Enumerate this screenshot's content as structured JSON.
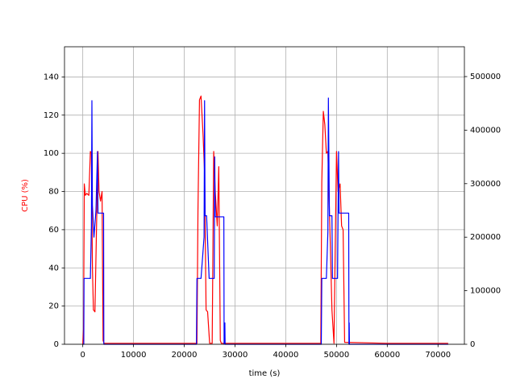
{
  "chart_data": {
    "type": "line",
    "x_label": "time (s)",
    "y_label": "CPU (%)",
    "y_label_color": "#ff0000",
    "xlim": [
      -3600,
      75200
    ],
    "xticks": [
      0,
      10000,
      20000,
      30000,
      40000,
      50000,
      60000,
      70000
    ],
    "ylim": [
      0,
      155.8
    ],
    "yticks": [
      0,
      20,
      40,
      60,
      80,
      100,
      120,
      140
    ],
    "y2lim": [
      0,
      555700
    ],
    "y2ticks": [
      0,
      100000,
      200000,
      300000,
      400000,
      500000
    ],
    "grid": true,
    "series": [
      {
        "color": "#ff0000",
        "x": [
          0,
          150,
          300,
          500,
          800,
          1200,
          1500,
          1700,
          1900,
          2100,
          2400,
          2700,
          3000,
          3200,
          3500,
          3800,
          4000,
          4200,
          10000,
          22500,
          22700,
          23000,
          23300,
          23700,
          24000,
          24300,
          24600,
          25000,
          25500,
          25800,
          26100,
          26500,
          26800,
          27100,
          27300,
          30000,
          46900,
          47100,
          47400,
          47700,
          48000,
          48300,
          48700,
          49100,
          49500,
          50000,
          50300,
          50700,
          51000,
          51300,
          51600,
          60000,
          72000
        ],
        "values": [
          0,
          8,
          84,
          78,
          79,
          78,
          101,
          100,
          40,
          18,
          17,
          60,
          101,
          80,
          75,
          80,
          2,
          0.5,
          0.5,
          0.5,
          70,
          128,
          130,
          110,
          90,
          18,
          17,
          0.5,
          0.5,
          101,
          80,
          62,
          93,
          2,
          0.5,
          0.5,
          0.5,
          85,
          122,
          115,
          100,
          101,
          60,
          18,
          0.5,
          101,
          80,
          84,
          62,
          60,
          1,
          0.5,
          0.5
        ]
      },
      {
        "color": "#0000ff",
        "axis": "y2",
        "x": [
          0,
          200,
          250,
          1500,
          1700,
          1800,
          1900,
          2200,
          2600,
          2900,
          3000,
          3100,
          4100,
          4150,
          22400,
          22500,
          23300,
          23900,
          24000,
          24100,
          24400,
          24900,
          25000,
          25900,
          26000,
          26100,
          27800,
          27850,
          28000,
          28050,
          47000,
          47100,
          48000,
          48300,
          48400,
          48600,
          49100,
          49200,
          50200,
          50400,
          50500,
          52400,
          52450,
          52500,
          52550,
          72000
        ],
        "values": [
          0,
          0,
          123000,
          123000,
          220000,
          455000,
          260000,
          200000,
          250000,
          360000,
          245000,
          245000,
          245000,
          0,
          0,
          123000,
          123000,
          200000,
          455000,
          240000,
          240000,
          123000,
          123000,
          123000,
          350000,
          238000,
          238000,
          0,
          40000,
          0,
          0,
          123000,
          123000,
          210000,
          460000,
          240000,
          240000,
          123000,
          123000,
          360000,
          245000,
          245000,
          0,
          40000,
          0,
          0
        ]
      }
    ]
  }
}
